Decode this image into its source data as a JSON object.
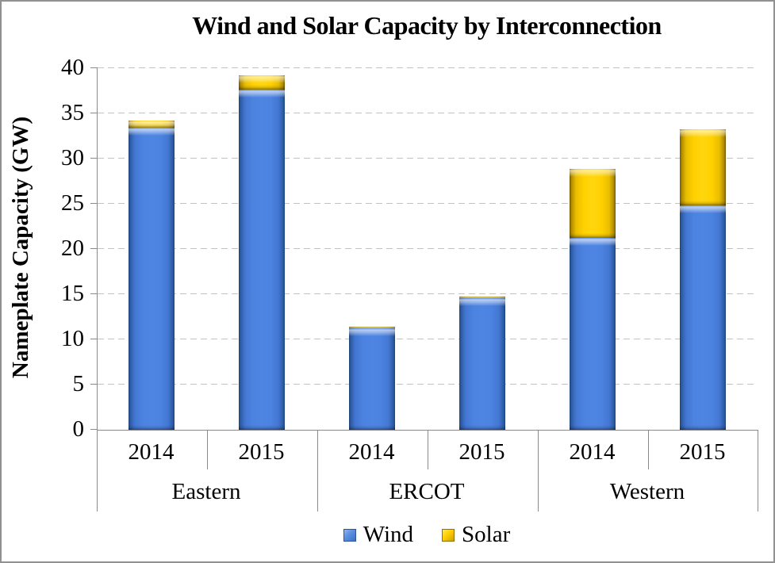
{
  "title": "Wind and Solar Capacity by Interconnection",
  "y_axis": {
    "title": "Nameplate Capacity (GW)",
    "ticks": [
      0,
      5,
      10,
      15,
      20,
      25,
      30,
      35,
      40
    ],
    "min": 0,
    "max": 40,
    "step": 5
  },
  "x_axis": {
    "group_labels": [
      "Eastern",
      "ERCOT",
      "Western"
    ],
    "year_labels": [
      "2014",
      "2015"
    ]
  },
  "legend": {
    "items": [
      {
        "label": "Wind",
        "color": "#4C82E0"
      },
      {
        "label": "Solar",
        "color": "#FFD000"
      }
    ],
    "position": "bottom"
  },
  "colors": {
    "wind_fill": "#4C82E0",
    "wind_edge": "#1E4376",
    "solar_fill": "#FFD000",
    "solar_edge": "#6E5600",
    "gridline": "#C2C2C2",
    "axis_line": "#8A8A8A",
    "frame_border": "#919191",
    "background": "#FFFFFF",
    "text": "#000000"
  },
  "chart_data": {
    "type": "bar",
    "stacked": true,
    "title": "Wind and Solar Capacity by Interconnection",
    "xlabel": "",
    "ylabel": "Nameplate Capacity (GW)",
    "ylim": [
      0,
      40
    ],
    "ytick_step": 5,
    "grid": "horizontal-dashed",
    "legend_position": "bottom",
    "group_labels": [
      "Eastern",
      "ERCOT",
      "Western"
    ],
    "categories": [
      "2014",
      "2015",
      "2014",
      "2015",
      "2014",
      "2015"
    ],
    "series": [
      {
        "name": "Wind",
        "color": "#4C82E0",
        "values": [
          33.4,
          37.6,
          11.2,
          14.6,
          21.2,
          24.8
        ]
      },
      {
        "name": "Solar",
        "color": "#FFD000",
        "values": [
          0.8,
          1.6,
          0.2,
          0.2,
          7.6,
          8.4
        ]
      }
    ],
    "totals": [
      34.2,
      39.2,
      11.4,
      14.8,
      28.8,
      33.2
    ]
  }
}
